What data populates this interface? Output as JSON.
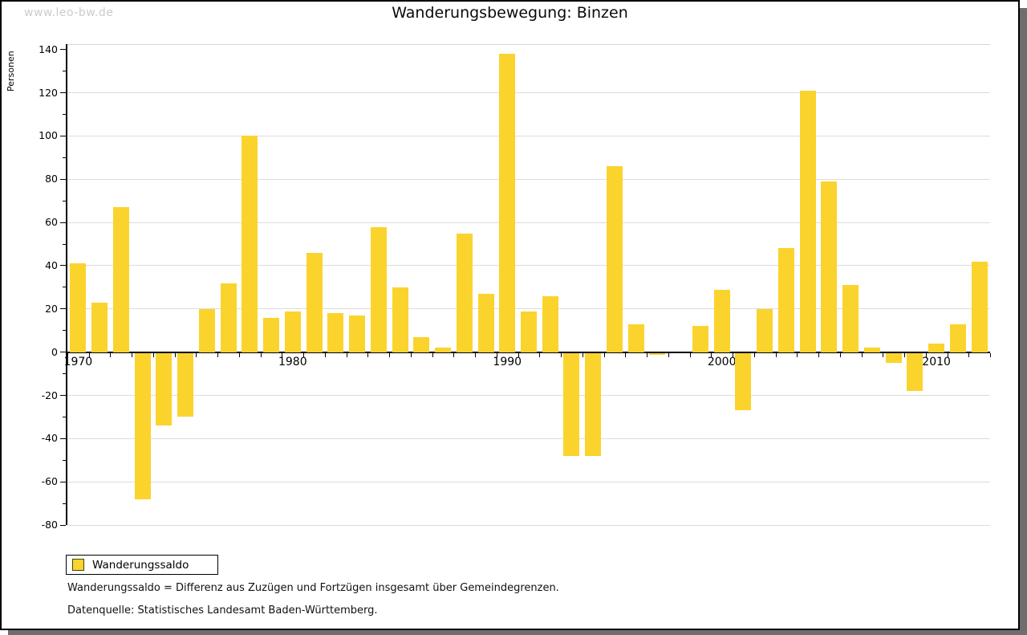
{
  "watermark": "www.leo-bw.de",
  "legend": {
    "label": "Wanderungssaldo",
    "swatch_color": "#FBD32D",
    "swatch_border": "#44440a"
  },
  "footnotes": [
    "Wanderungssaldo = Differenz aus Zuzügen und Fortzügen insgesamt über Gemeindegrenzen.",
    "Datenquelle: Statistisches Landesamt Baden-Württemberg."
  ],
  "colors": {
    "bar": "#FBD32D",
    "grid": "#dcdcdc",
    "axis": "#000000",
    "watermark": "#cccccc",
    "shadow": "#6e6e6e"
  },
  "chart_data": {
    "type": "bar",
    "title": "Wanderungsbewegung: Binzen",
    "xlabel": "",
    "ylabel": "Personen",
    "ylim": [
      -80,
      140
    ],
    "y_major_step": 20,
    "y_minor_step": 10,
    "grid": "horizontal",
    "legend_position": "bottom-left",
    "categories": [
      1970,
      1971,
      1972,
      1973,
      1974,
      1975,
      1976,
      1977,
      1978,
      1979,
      1980,
      1981,
      1982,
      1983,
      1984,
      1985,
      1986,
      1987,
      1988,
      1989,
      1990,
      1991,
      1992,
      1993,
      1994,
      1995,
      1996,
      1997,
      1998,
      1999,
      2000,
      2001,
      2002,
      2003,
      2004,
      2005,
      2006,
      2007,
      2008,
      2009,
      2010,
      2011,
      2012
    ],
    "series": [
      {
        "name": "Wanderungssaldo",
        "values": [
          41,
          23,
          67,
          -68,
          -34,
          -30,
          20,
          32,
          100,
          16,
          19,
          46,
          18,
          17,
          58,
          30,
          7,
          2,
          55,
          27,
          138,
          19,
          26,
          -48,
          -48,
          86,
          13,
          -1,
          0,
          12,
          29,
          -27,
          20,
          48,
          121,
          79,
          31,
          2,
          -5,
          -18,
          4,
          13,
          42
        ]
      }
    ],
    "x_tick_labels": [
      "1970",
      "1980",
      "1990",
      "2000",
      "2010"
    ],
    "y_tick_labels": [
      "140",
      "120",
      "100",
      "80",
      "60",
      "40",
      "20",
      "0",
      "-20",
      "-40",
      "-60",
      "-80"
    ]
  }
}
